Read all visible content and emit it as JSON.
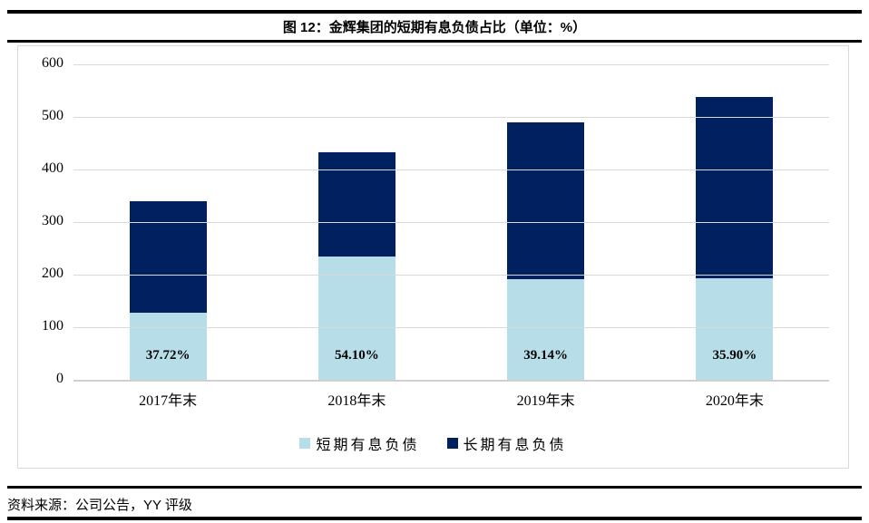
{
  "header": {
    "title": "图 12：金辉集团的短期有息负债占比（单位：%）"
  },
  "footer": {
    "source": "资料来源：公司公告，YY 评级"
  },
  "colors": {
    "short_term": "#B7DDE8",
    "long_term": "#002060",
    "gridline": "#D9D9D9",
    "axis_line": "#D0D0D0",
    "rule": "#000000"
  },
  "chart_data": {
    "type": "bar",
    "stacked": true,
    "title": "图 12：金辉集团的短期有息负债占比（单位：%）",
    "categories": [
      "2017年末",
      "2018年末",
      "2019年末",
      "2020年末"
    ],
    "series": [
      {
        "name": "短期有息负债",
        "color": "#B7DDE8",
        "values": [
          128,
          234,
          192,
          193
        ]
      },
      {
        "name": "长期有息负债",
        "color": "#002060",
        "values": [
          212,
          198,
          298,
          345
        ]
      }
    ],
    "totals": [
      340,
      432,
      490,
      538
    ],
    "bar_labels": [
      "37.72%",
      "54.10%",
      "39.14%",
      "35.90%"
    ],
    "bar_label_series": "短期有息负债",
    "xlabel": "",
    "ylabel": "",
    "ylim": [
      0,
      600
    ],
    "yticks": [
      0,
      100,
      200,
      300,
      400,
      500,
      600
    ],
    "grid": true,
    "legend_position": "bottom"
  }
}
